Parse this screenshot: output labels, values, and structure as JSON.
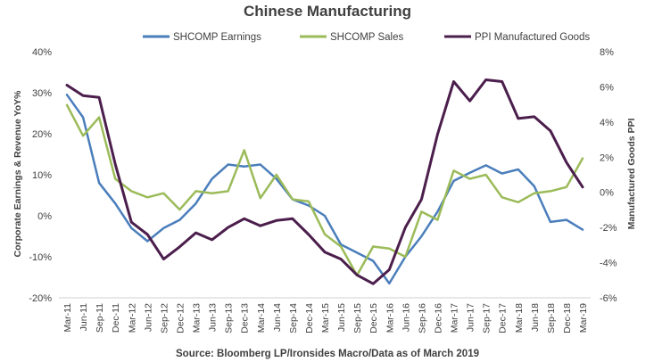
{
  "chart_data": {
    "type": "line",
    "title": "Chinese Manufacturing",
    "source": "Source: Bloomberg LP/Ironsides Macro/Data as of March 2019",
    "ylabel_left": "Corporate Earnings & Revenue YoY%",
    "ylabel_right": "Manufactured Goods PPI",
    "ylim_left": [
      -20,
      40
    ],
    "ylim_right": [
      -6,
      8
    ],
    "yticks_left": [
      "-20%",
      "-10%",
      "0%",
      "10%",
      "20%",
      "30%",
      "40%"
    ],
    "yticks_right": [
      "-6%",
      "-4%",
      "-2%",
      "0%",
      "2%",
      "4%",
      "6%",
      "8%"
    ],
    "categories": [
      "Mar-11",
      "Jun-11",
      "Sep-11",
      "Dec-11",
      "Mar-12",
      "Jun-12",
      "Sep-12",
      "Dec-12",
      "Mar-13",
      "Jun-13",
      "Sep-13",
      "Dec-13",
      "Mar-14",
      "Jun-14",
      "Sep-14",
      "Dec-14",
      "Mar-15",
      "Jun-15",
      "Sep-15",
      "Dec-15",
      "Mar-16",
      "Jun-16",
      "Sep-16",
      "Dec-16",
      "Mar-17",
      "Jun-17",
      "Sep-17",
      "Dec-17",
      "Mar-18",
      "Jun-18",
      "Sep-18",
      "Dec-18",
      "Mar-19"
    ],
    "series": [
      {
        "name": "SHCOMP Earnings",
        "axis": "left",
        "color": "#4a7ebb",
        "values": [
          29.5,
          24,
          8,
          3,
          -3,
          -6.2,
          -3,
          -1,
          3,
          9,
          12.5,
          12,
          12.5,
          9,
          4,
          2.5,
          0,
          -7,
          -9,
          -11,
          -16.5,
          -10,
          -5,
          1,
          8.5,
          10.5,
          12.3,
          10.3,
          11.3,
          7.2,
          -1.5,
          -1,
          -3.4
        ]
      },
      {
        "name": "SHCOMP Sales",
        "axis": "left",
        "color": "#9bbb59",
        "values": [
          27,
          19.5,
          24,
          9,
          6,
          4.5,
          5.5,
          1.5,
          6,
          5.5,
          6,
          16,
          4.3,
          10,
          4,
          3.5,
          -4.5,
          -7.5,
          -14.5,
          -7.5,
          -8,
          -10,
          1,
          -1,
          11,
          9,
          10,
          4.5,
          3.3,
          5.5,
          6,
          7,
          14
        ]
      },
      {
        "name": "PPI Manufactured Goods",
        "axis": "right",
        "color": "#4b1e4c",
        "values": [
          6.1,
          5.5,
          5.4,
          1.6,
          -1.7,
          -2.4,
          -3.8,
          -3.1,
          -2.3,
          -2.7,
          -2,
          -1.5,
          -1.9,
          -1.6,
          -1.5,
          -2.4,
          -3.4,
          -3.8,
          -4.7,
          -5.2,
          -4.4,
          -2,
          -0.4,
          3.3,
          6.3,
          5.2,
          6.4,
          6.3,
          4.2,
          4.3,
          3.5,
          1.7,
          0.3
        ]
      }
    ]
  }
}
